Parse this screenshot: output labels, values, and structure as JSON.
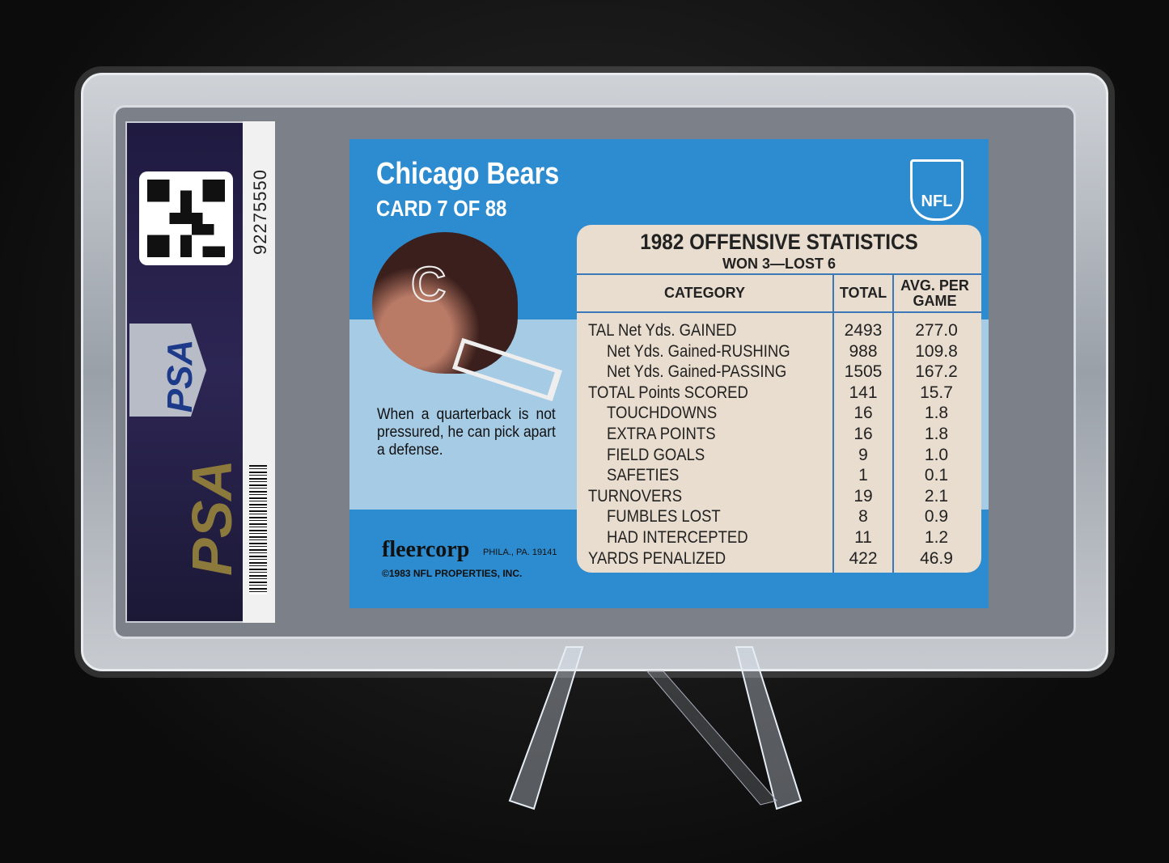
{
  "slab": {
    "cert_number": "92275550",
    "grader_logo": "PSA"
  },
  "card": {
    "team": "Chicago Bears",
    "card_number": "CARD 7 OF 88",
    "caption": "When a quarterback is not pressured, he can pick apart a defense.",
    "publisher": "fleercorp",
    "publisher_location": "PHILA., PA. 19141",
    "copyright": "©1983 NFL PROPERTIES, INC.",
    "league_logo": "NFL",
    "stats": {
      "title": "1982 OFFENSIVE STATISTICS",
      "record": "WON 3—LOST 6",
      "headers": [
        "CATEGORY",
        "TOTAL",
        "AVG. PER GAME"
      ],
      "rows": [
        {
          "category": "TAL Net Yds. GAINED",
          "total": "2493",
          "avg": "277.0",
          "indent": false
        },
        {
          "category": "Net Yds. Gained-RUSHING",
          "total": "988",
          "avg": "109.8",
          "indent": true
        },
        {
          "category": "Net Yds. Gained-PASSING",
          "total": "1505",
          "avg": "167.2",
          "indent": true
        },
        {
          "category": "TOTAL Points SCORED",
          "total": "141",
          "avg": "15.7",
          "indent": false
        },
        {
          "category": "TOUCHDOWNS",
          "total": "16",
          "avg": "1.8",
          "indent": true
        },
        {
          "category": "EXTRA POINTS",
          "total": "16",
          "avg": "1.8",
          "indent": true
        },
        {
          "category": "FIELD GOALS",
          "total": "9",
          "avg": "1.0",
          "indent": true
        },
        {
          "category": "SAFETIES",
          "total": "1",
          "avg": "0.1",
          "indent": true
        },
        {
          "category": "TURNOVERS",
          "total": "19",
          "avg": "2.1",
          "indent": false
        },
        {
          "category": "FUMBLES LOST",
          "total": "8",
          "avg": "0.9",
          "indent": true
        },
        {
          "category": "HAD INTERCEPTED",
          "total": "11",
          "avg": "1.2",
          "indent": true
        },
        {
          "category": "YARDS PENALIZED",
          "total": "422",
          "avg": "46.9",
          "indent": false
        }
      ]
    }
  }
}
